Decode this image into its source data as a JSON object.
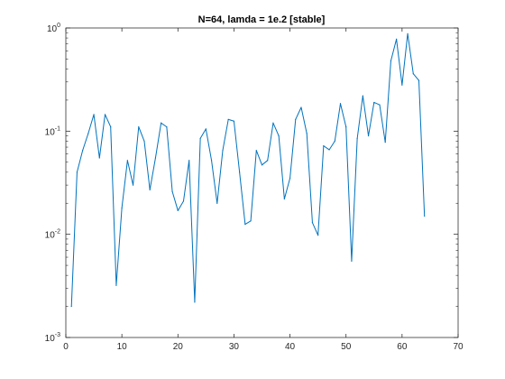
{
  "chart_data": {
    "type": "line",
    "title": "N=64, lamda = 1e.2 [stable]",
    "xlabel": "",
    "ylabel": "",
    "xlim": [
      0,
      70
    ],
    "ylim": [
      0.001,
      1
    ],
    "y_scale": "log",
    "grid": false,
    "line_color": "#0072BD",
    "x_ticks": [
      0,
      10,
      20,
      30,
      40,
      50,
      60,
      70
    ],
    "x_tick_labels": [
      "0",
      "10",
      "20",
      "30",
      "40",
      "50",
      "60",
      "70"
    ],
    "y_ticks": [
      0.001,
      0.01,
      0.1,
      1
    ],
    "y_tick_labels": [
      {
        "base": "10",
        "exp": "-3"
      },
      {
        "base": "10",
        "exp": "-2"
      },
      {
        "base": "10",
        "exp": "-1"
      },
      {
        "base": "10",
        "exp": "0"
      }
    ],
    "series": [
      {
        "x": [
          1,
          2,
          3,
          4,
          5,
          6,
          7,
          8,
          9,
          10,
          11,
          12,
          13,
          14,
          15,
          16,
          17,
          18,
          19,
          20,
          21,
          22,
          23,
          24,
          25,
          26,
          27,
          28,
          29,
          30,
          31,
          32,
          33,
          34,
          35,
          36,
          37,
          38,
          39,
          40,
          41,
          42,
          43,
          44,
          45,
          46,
          47,
          48,
          49,
          50,
          51,
          52,
          53,
          54,
          55,
          56,
          57,
          58,
          59,
          60,
          61,
          62,
          63,
          64
        ],
        "values": [
          0.002,
          0.04,
          0.065,
          0.095,
          0.145,
          0.055,
          0.145,
          0.11,
          0.0032,
          0.018,
          0.052,
          0.03,
          0.11,
          0.08,
          0.027,
          0.055,
          0.12,
          0.11,
          0.026,
          0.017,
          0.021,
          0.052,
          0.0022,
          0.085,
          0.105,
          0.052,
          0.02,
          0.065,
          0.13,
          0.125,
          0.04,
          0.0125,
          0.0135,
          0.065,
          0.047,
          0.052,
          0.12,
          0.09,
          0.022,
          0.035,
          0.13,
          0.17,
          0.095,
          0.013,
          0.0098,
          0.072,
          0.066,
          0.08,
          0.185,
          0.11,
          0.0055,
          0.085,
          0.22,
          0.09,
          0.19,
          0.18,
          0.078,
          0.48,
          0.78,
          0.28,
          0.88,
          0.36,
          0.31,
          0.015
        ]
      }
    ]
  }
}
